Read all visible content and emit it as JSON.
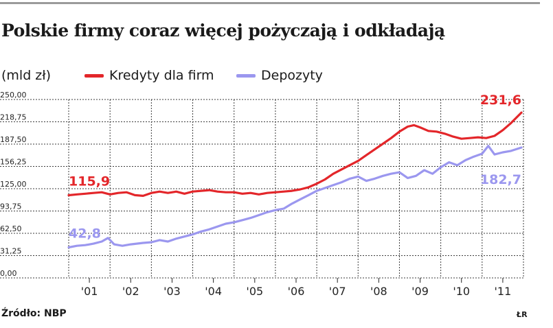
{
  "header": {
    "title": "Polskie firmy coraz więcej pożyczają i odkładają",
    "unit": "(mld zł)"
  },
  "legend": {
    "items": [
      {
        "label": "Kredyty dla firm",
        "color": "#e3262a"
      },
      {
        "label": "Depozyty",
        "color": "#9b97ef"
      }
    ]
  },
  "footer": {
    "source": "Źródło: NBP",
    "author": "ŁR"
  },
  "chart_data": {
    "type": "line",
    "ylim": [
      0,
      250
    ],
    "yticks": [
      "250,00",
      "218,75",
      "187,50",
      "156,25",
      "125,00",
      "93,75",
      "62,50",
      "31,25",
      "0,00"
    ],
    "xlim": [
      2000.5,
      2011.5
    ],
    "xticks": [
      {
        "label": "'01",
        "x": 2001
      },
      {
        "label": "'02",
        "x": 2002
      },
      {
        "label": "'03",
        "x": 2003
      },
      {
        "label": "'04",
        "x": 2004
      },
      {
        "label": "'05",
        "x": 2005
      },
      {
        "label": "'06",
        "x": 2006
      },
      {
        "label": "'07",
        "x": 2007
      },
      {
        "label": "'08",
        "x": 2008
      },
      {
        "label": "'09",
        "x": 2009
      },
      {
        "label": "'10",
        "x": 2010
      },
      {
        "label": "'11",
        "x": 2011
      }
    ],
    "grid": true,
    "series": [
      {
        "name": "Kredyty dla firm",
        "color": "#e3262a",
        "start_label": "115,9",
        "end_label": "231,6",
        "points": [
          [
            2000.5,
            115.9
          ],
          [
            2000.7,
            117
          ],
          [
            2000.9,
            118
          ],
          [
            2001.1,
            119
          ],
          [
            2001.3,
            120
          ],
          [
            2001.5,
            117
          ],
          [
            2001.7,
            119
          ],
          [
            2001.9,
            120
          ],
          [
            2002.1,
            116
          ],
          [
            2002.3,
            115
          ],
          [
            2002.5,
            119
          ],
          [
            2002.7,
            121
          ],
          [
            2002.9,
            119
          ],
          [
            2003.1,
            121
          ],
          [
            2003.3,
            118
          ],
          [
            2003.5,
            121
          ],
          [
            2003.7,
            122
          ],
          [
            2003.9,
            123
          ],
          [
            2004.1,
            121
          ],
          [
            2004.3,
            120
          ],
          [
            2004.5,
            120
          ],
          [
            2004.7,
            118
          ],
          [
            2004.9,
            119
          ],
          [
            2005.1,
            117
          ],
          [
            2005.3,
            119
          ],
          [
            2005.5,
            120
          ],
          [
            2005.7,
            121
          ],
          [
            2005.9,
            122
          ],
          [
            2006.1,
            124
          ],
          [
            2006.3,
            127
          ],
          [
            2006.5,
            132
          ],
          [
            2006.7,
            138
          ],
          [
            2006.9,
            146
          ],
          [
            2007.1,
            152
          ],
          [
            2007.3,
            158
          ],
          [
            2007.5,
            164
          ],
          [
            2007.7,
            172
          ],
          [
            2007.9,
            180
          ],
          [
            2008.1,
            188
          ],
          [
            2008.3,
            196
          ],
          [
            2008.5,
            205
          ],
          [
            2008.7,
            212
          ],
          [
            2008.85,
            214
          ],
          [
            2009.0,
            211
          ],
          [
            2009.2,
            206
          ],
          [
            2009.4,
            205
          ],
          [
            2009.6,
            202
          ],
          [
            2009.8,
            198
          ],
          [
            2010.0,
            195
          ],
          [
            2010.2,
            196
          ],
          [
            2010.4,
            197
          ],
          [
            2010.6,
            196
          ],
          [
            2010.8,
            199
          ],
          [
            2011.0,
            207
          ],
          [
            2011.2,
            217
          ],
          [
            2011.45,
            231.6
          ]
        ]
      },
      {
        "name": "Depozyty",
        "color": "#9b97ef",
        "start_label": "42,8",
        "end_label": "182,7",
        "points": [
          [
            2000.5,
            42.8
          ],
          [
            2000.7,
            45
          ],
          [
            2000.9,
            46
          ],
          [
            2001.1,
            48
          ],
          [
            2001.3,
            51
          ],
          [
            2001.45,
            56
          ],
          [
            2001.6,
            47
          ],
          [
            2001.8,
            45
          ],
          [
            2002.0,
            47
          ],
          [
            2002.3,
            49
          ],
          [
            2002.5,
            50
          ],
          [
            2002.7,
            53
          ],
          [
            2002.9,
            51
          ],
          [
            2003.1,
            55
          ],
          [
            2003.3,
            58
          ],
          [
            2003.5,
            61
          ],
          [
            2003.7,
            65
          ],
          [
            2003.9,
            68
          ],
          [
            2004.1,
            72
          ],
          [
            2004.3,
            76
          ],
          [
            2004.5,
            78
          ],
          [
            2004.7,
            81
          ],
          [
            2004.9,
            84
          ],
          [
            2005.1,
            88
          ],
          [
            2005.3,
            92
          ],
          [
            2005.5,
            95
          ],
          [
            2005.7,
            97
          ],
          [
            2005.9,
            104
          ],
          [
            2006.1,
            110
          ],
          [
            2006.3,
            116
          ],
          [
            2006.5,
            122
          ],
          [
            2006.7,
            126
          ],
          [
            2006.9,
            130
          ],
          [
            2007.1,
            134
          ],
          [
            2007.3,
            139
          ],
          [
            2007.5,
            142
          ],
          [
            2007.7,
            136
          ],
          [
            2007.9,
            139
          ],
          [
            2008.1,
            143
          ],
          [
            2008.3,
            146
          ],
          [
            2008.5,
            148
          ],
          [
            2008.7,
            140
          ],
          [
            2008.9,
            143
          ],
          [
            2009.1,
            151
          ],
          [
            2009.3,
            146
          ],
          [
            2009.5,
            155
          ],
          [
            2009.7,
            162
          ],
          [
            2009.9,
            158
          ],
          [
            2010.1,
            165
          ],
          [
            2010.3,
            170
          ],
          [
            2010.5,
            174
          ],
          [
            2010.65,
            185
          ],
          [
            2010.8,
            173
          ],
          [
            2011.0,
            176
          ],
          [
            2011.2,
            178
          ],
          [
            2011.45,
            182.7
          ]
        ]
      }
    ]
  }
}
